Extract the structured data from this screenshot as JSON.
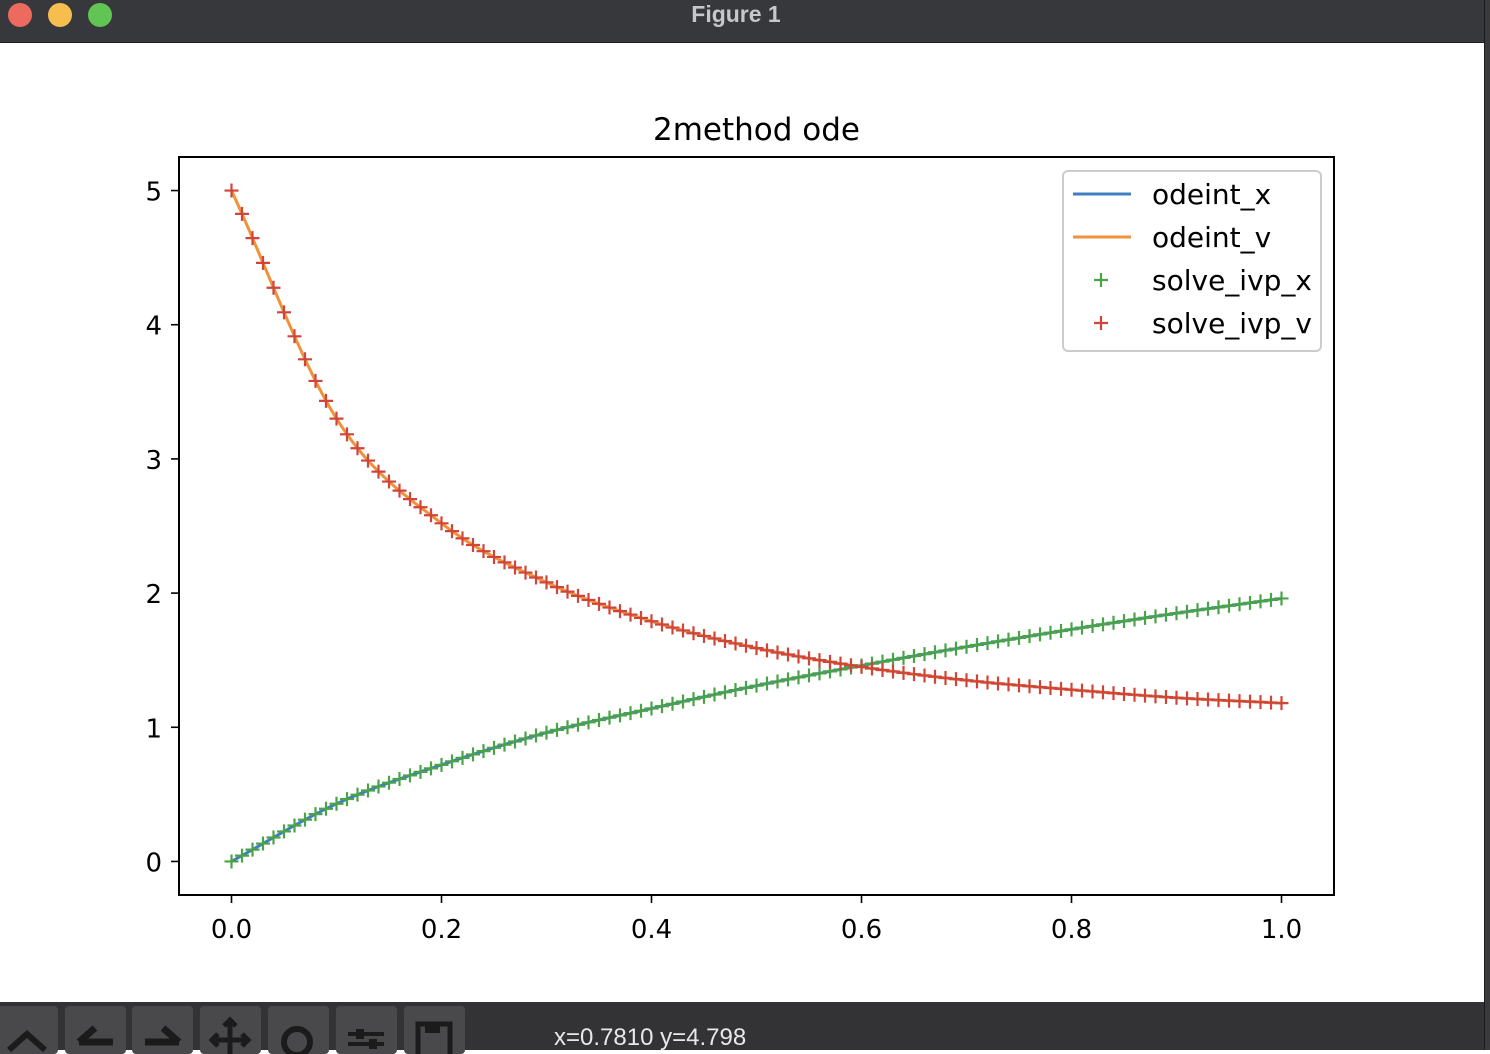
{
  "window": {
    "title": "Figure 1"
  },
  "toolbar": {
    "buttons": [
      {
        "icon": "home-icon"
      },
      {
        "icon": "back-arrow-icon"
      },
      {
        "icon": "forward-arrow-icon"
      },
      {
        "icon": "pan-move-icon"
      },
      {
        "icon": "zoom-magnifier-icon"
      },
      {
        "icon": "configure-subplots-icon"
      },
      {
        "icon": "save-floppy-icon"
      }
    ],
    "status_text": "x=0.7810 y=4.798"
  },
  "colors": {
    "odeint_x": "#3f7fbf",
    "odeint_v": "#f0923a",
    "solve_ivp_x": "#4aa346",
    "solve_ivp_v": "#d0453a"
  },
  "chart_data": {
    "type": "line",
    "title": "2method ode",
    "xlabel": "",
    "ylabel": "",
    "xlim": [
      -0.05,
      1.05
    ],
    "ylim": [
      -0.25,
      5.25
    ],
    "xticks": [
      "0.0",
      "0.2",
      "0.4",
      "0.6",
      "0.8",
      "1.0"
    ],
    "yticks": [
      "0",
      "1",
      "2",
      "3",
      "4",
      "5"
    ],
    "grid": false,
    "legend_position": "top-right",
    "x": [
      0.0,
      0.1,
      0.2,
      0.3,
      0.4,
      0.5,
      0.6,
      0.7,
      0.8,
      0.9,
      1.0
    ],
    "series": [
      {
        "name": "odeint_x",
        "style": "line",
        "values": [
          0.0,
          0.43,
          0.72,
          0.96,
          1.14,
          1.31,
          1.46,
          1.6,
          1.73,
          1.85,
          1.96
        ]
      },
      {
        "name": "odeint_v",
        "style": "line",
        "values": [
          5.0,
          3.3,
          2.52,
          2.08,
          1.79,
          1.59,
          1.45,
          1.35,
          1.28,
          1.22,
          1.18
        ]
      },
      {
        "name": "solve_ivp_x",
        "style": "plus-markers",
        "values": [
          0.0,
          0.43,
          0.72,
          0.96,
          1.14,
          1.31,
          1.46,
          1.6,
          1.73,
          1.85,
          1.96
        ]
      },
      {
        "name": "solve_ivp_v",
        "style": "plus-markers",
        "values": [
          5.0,
          3.3,
          2.52,
          2.08,
          1.79,
          1.59,
          1.45,
          1.35,
          1.28,
          1.22,
          1.18
        ]
      }
    ]
  }
}
